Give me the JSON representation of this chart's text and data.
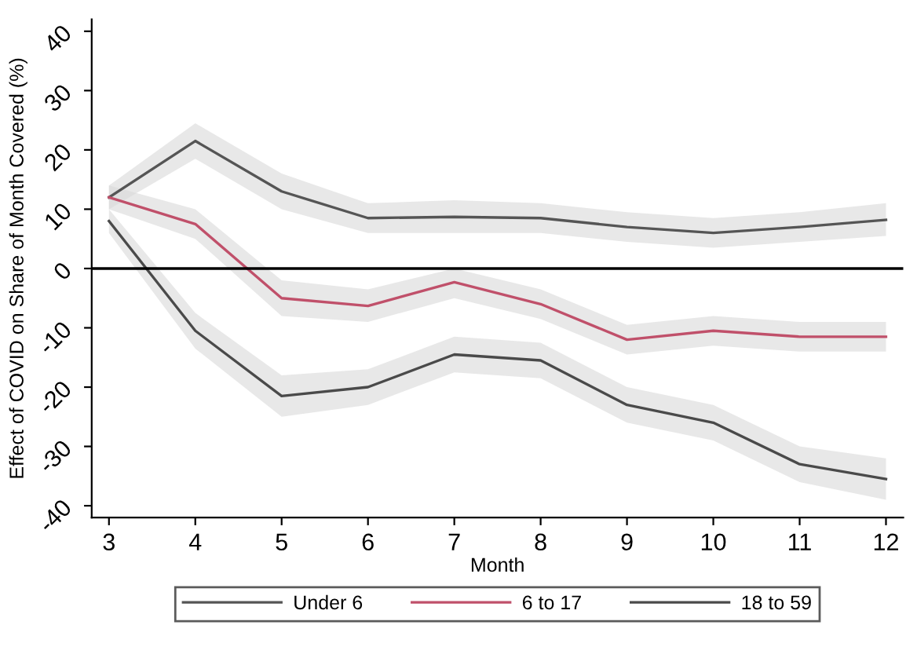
{
  "chart_data": {
    "type": "line",
    "xlabel": "Month",
    "ylabel": "Effect of COVID on Share of Month Covered (%)",
    "x": [
      3,
      4,
      5,
      6,
      7,
      8,
      9,
      10,
      11,
      12
    ],
    "series": [
      {
        "name": "Under 6",
        "color": "#555555",
        "values": [
          12,
          21.5,
          13,
          8.5,
          8.7,
          8.5,
          7,
          6,
          7,
          8.2
        ],
        "lower": [
          10,
          18.5,
          10,
          6,
          6,
          6,
          4.5,
          3.5,
          4.5,
          5.5
        ],
        "upper": [
          14,
          24.5,
          16,
          11,
          11.5,
          11,
          9.5,
          8.5,
          9.5,
          11
        ]
      },
      {
        "name": "6 to 17",
        "color": "#c0506a",
        "values": [
          12,
          7.5,
          -5,
          -6.3,
          -2.3,
          -6,
          -12,
          -10.5,
          -11.5,
          -11.5
        ],
        "lower": [
          10,
          5,
          -8,
          -9,
          -5,
          -8.5,
          -14.5,
          -13,
          -14,
          -14
        ],
        "upper": [
          14,
          10,
          -2,
          -3.5,
          0,
          -3.5,
          -9.5,
          -8,
          -9,
          -9
        ]
      },
      {
        "name": "18 to 59",
        "color": "#4a4a4a",
        "values": [
          8,
          -10.5,
          -21.5,
          -20,
          -14.5,
          -15.5,
          -23,
          -26,
          -33,
          -35.5
        ],
        "lower": [
          6,
          -13.5,
          -25,
          -23,
          -17.5,
          -18.5,
          -26,
          -29,
          -36,
          -39
        ],
        "upper": [
          10,
          -7.5,
          -18,
          -17,
          -11.5,
          -12.5,
          -20,
          -23,
          -30,
          -32
        ]
      }
    ],
    "xlim": [
      2.8,
      12.2
    ],
    "xticks": [
      3,
      4,
      5,
      6,
      7,
      8,
      9,
      10,
      11,
      12
    ],
    "ylim": [
      -42,
      42
    ],
    "yticks": [
      -40,
      -30,
      -20,
      -10,
      0,
      10,
      20,
      30,
      40
    ],
    "ref_lines": [
      {
        "axis": "y",
        "value": 0,
        "color": "#000000"
      }
    ],
    "grid": false,
    "legend": "bottom",
    "marker": "none",
    "line_style": "solid"
  }
}
